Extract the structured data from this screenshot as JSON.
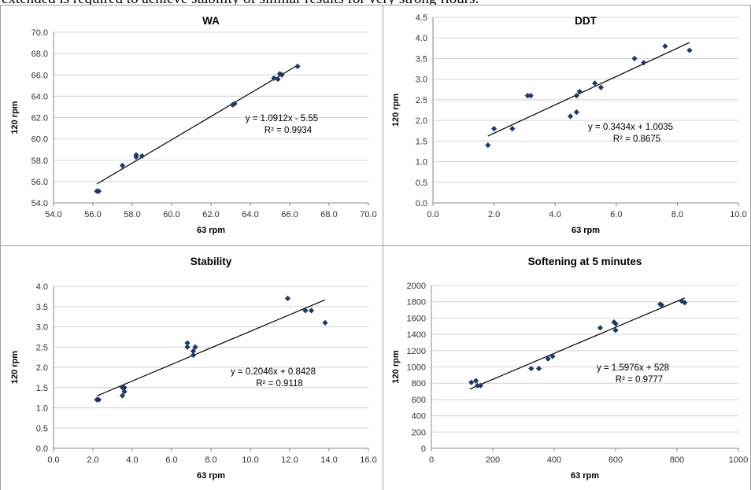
{
  "caption": "extended is required to achieve stability of similar results for very strong flours.",
  "chart_data": [
    {
      "type": "scatter",
      "title": "WA",
      "xlabel": "63 rpm",
      "ylabel": "120 rpm",
      "xlim": [
        54,
        70
      ],
      "ylim": [
        54,
        70
      ],
      "xticks": [
        "54.0",
        "56.0",
        "58.0",
        "60.0",
        "62.0",
        "64.0",
        "66.0",
        "68.0",
        "70.0"
      ],
      "yticks": [
        "54.0",
        "56.0",
        "58.0",
        "60.0",
        "62.0",
        "64.0",
        "66.0",
        "68.0",
        "70.0"
      ],
      "points": [
        [
          56.2,
          55.1
        ],
        [
          56.3,
          55.1
        ],
        [
          57.5,
          57.5
        ],
        [
          58.2,
          58.5
        ],
        [
          58.2,
          58.3
        ],
        [
          58.5,
          58.4
        ],
        [
          63.1,
          63.2
        ],
        [
          63.2,
          63.3
        ],
        [
          65.2,
          65.7
        ],
        [
          65.4,
          65.6
        ],
        [
          65.5,
          66.1
        ],
        [
          65.6,
          66.0
        ],
        [
          66.4,
          66.8
        ]
      ],
      "trendline": {
        "x": [
          56.2,
          66.4
        ]
      },
      "equation": "y = 1.0912x - 5.55",
      "r2": "R² = 0.9934",
      "marker_color": "#1f3864",
      "grid": true
    },
    {
      "type": "scatter",
      "title": "DDT",
      "xlabel": "63 rpm",
      "ylabel": "120 rpm",
      "xlim": [
        0,
        10
      ],
      "ylim": [
        0,
        4.5
      ],
      "xticks": [
        "0.0",
        "2.0",
        "4.0",
        "6.0",
        "8.0",
        "10.0"
      ],
      "yticks": [
        "0.0",
        "0.5",
        "1.0",
        "1.5",
        "2.0",
        "2.5",
        "3.0",
        "3.5",
        "4.0",
        "4.5"
      ],
      "points": [
        [
          1.8,
          1.4
        ],
        [
          2.0,
          1.8
        ],
        [
          2.6,
          1.8
        ],
        [
          3.1,
          2.6
        ],
        [
          3.2,
          2.6
        ],
        [
          4.5,
          2.1
        ],
        [
          4.7,
          2.2
        ],
        [
          4.7,
          2.6
        ],
        [
          4.8,
          2.7
        ],
        [
          5.3,
          2.9
        ],
        [
          5.5,
          2.8
        ],
        [
          6.6,
          3.5
        ],
        [
          6.9,
          3.4
        ],
        [
          7.6,
          3.8
        ],
        [
          8.4,
          3.7
        ]
      ],
      "trendline": {
        "x": [
          1.8,
          8.4
        ]
      },
      "equation": "y = 0.3434x + 1.0035",
      "r2": "R² = 0.8675",
      "marker_color": "#1f3864",
      "grid": true
    },
    {
      "type": "scatter",
      "title": "Stability",
      "xlabel": "63 rpm",
      "ylabel": "120 rpm",
      "xlim": [
        0,
        16
      ],
      "ylim": [
        0,
        4
      ],
      "xticks": [
        "0.0",
        "2.0",
        "4.0",
        "6.0",
        "8.0",
        "10.0",
        "12.0",
        "14.0",
        "16.0"
      ],
      "yticks": [
        "0.0",
        "0.5",
        "1.0",
        "1.5",
        "2.0",
        "2.5",
        "3.0",
        "3.5",
        "4.0"
      ],
      "points": [
        [
          2.2,
          1.2
        ],
        [
          2.3,
          1.2
        ],
        [
          3.5,
          1.5
        ],
        [
          3.5,
          1.3
        ],
        [
          3.6,
          1.4
        ],
        [
          3.6,
          1.5
        ],
        [
          6.8,
          2.6
        ],
        [
          6.8,
          2.5
        ],
        [
          7.1,
          2.4
        ],
        [
          7.2,
          2.5
        ],
        [
          7.1,
          2.3
        ],
        [
          11.9,
          3.7
        ],
        [
          12.8,
          3.4
        ],
        [
          13.1,
          3.4
        ],
        [
          13.8,
          3.1
        ]
      ],
      "trendline": {
        "x": [
          2.2,
          13.8
        ]
      },
      "equation": "y = 0.2046x + 0.8428",
      "r2": "R² = 0.9118",
      "marker_color": "#1f3864",
      "grid": true
    },
    {
      "type": "scatter",
      "title": "Softening at 5 minutes",
      "xlabel": "63 rpm",
      "ylabel": "120 rpm",
      "xlim": [
        0,
        1000
      ],
      "ylim": [
        0,
        2000
      ],
      "xticks": [
        "0",
        "200",
        "400",
        "600",
        "800",
        "1000"
      ],
      "yticks": [
        "0",
        "200",
        "400",
        "600",
        "800",
        "1000",
        "1200",
        "1400",
        "1600",
        "1800",
        "2000"
      ],
      "points": [
        [
          130,
          810
        ],
        [
          145,
          830
        ],
        [
          150,
          770
        ],
        [
          160,
          770
        ],
        [
          325,
          980
        ],
        [
          350,
          980
        ],
        [
          380,
          1100
        ],
        [
          395,
          1130
        ],
        [
          550,
          1480
        ],
        [
          595,
          1550
        ],
        [
          600,
          1530
        ],
        [
          600,
          1450
        ],
        [
          745,
          1770
        ],
        [
          750,
          1760
        ],
        [
          815,
          1810
        ],
        [
          825,
          1790
        ]
      ],
      "trendline": {
        "x": [
          125,
          825
        ]
      },
      "equation": "y = 1.5976x + 528",
      "r2": "R² = 0.9777",
      "marker_color": "#1f3864",
      "grid": true
    }
  ]
}
